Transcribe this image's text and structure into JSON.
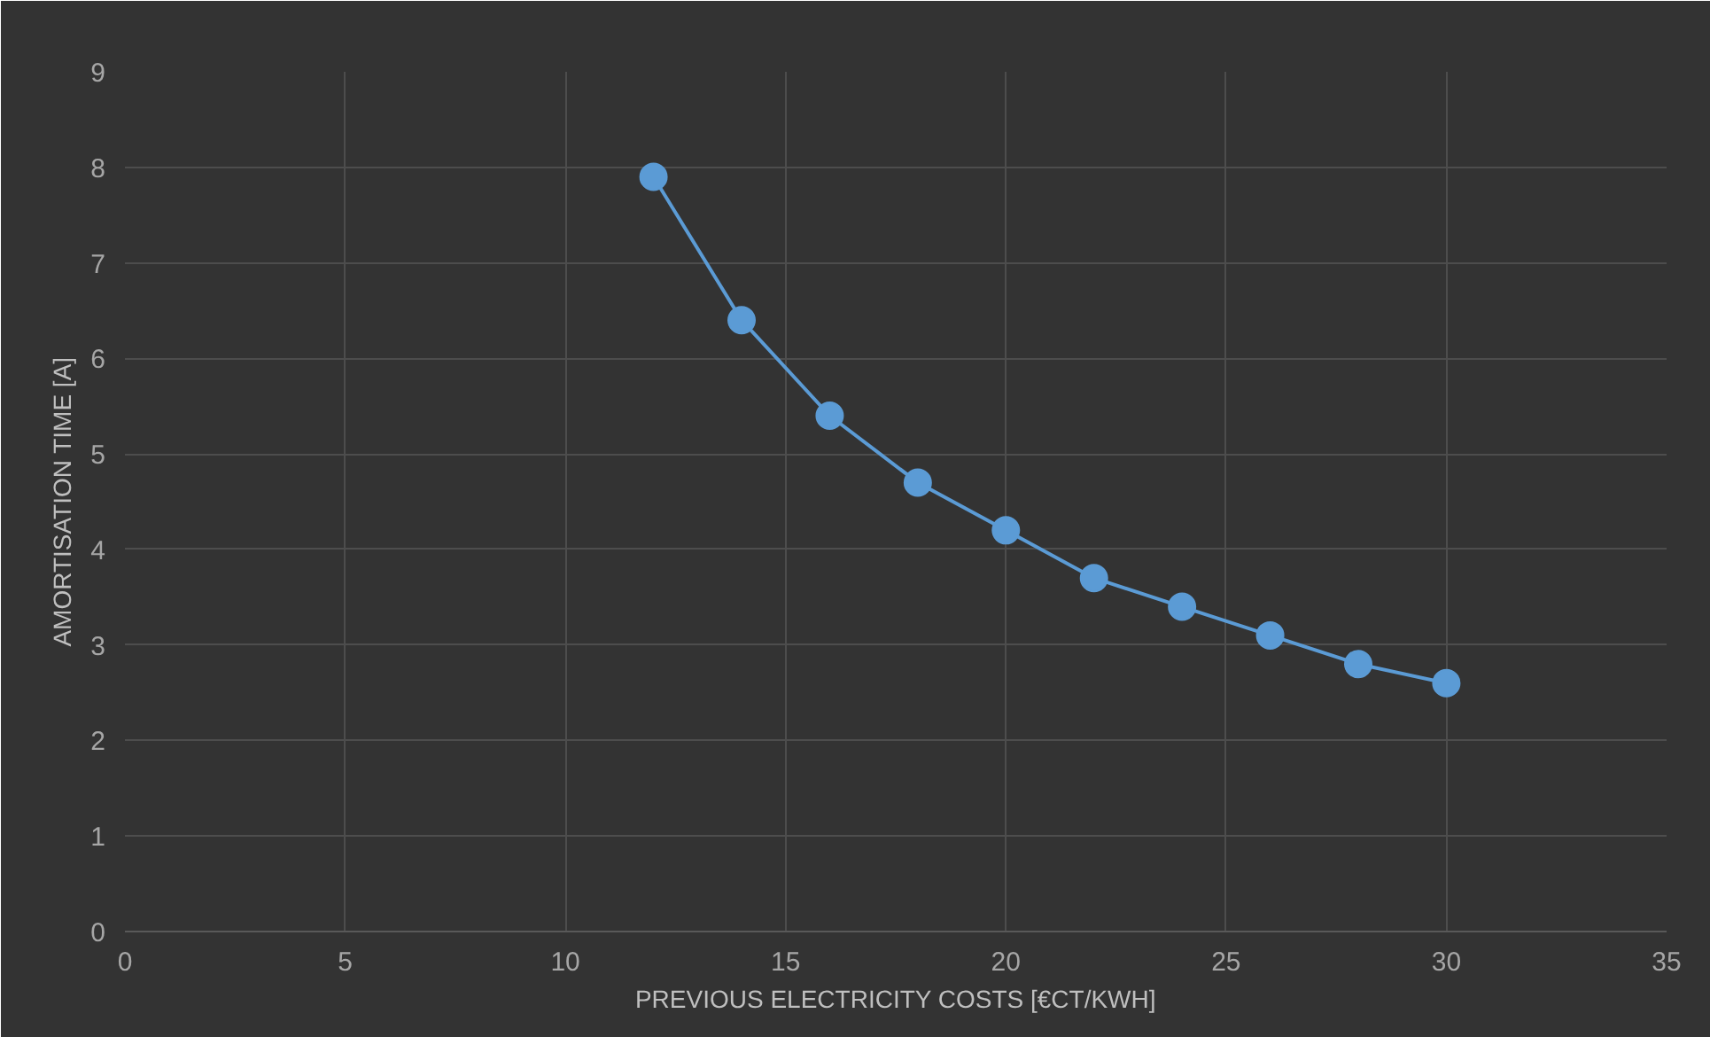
{
  "chart_data": {
    "type": "line",
    "xlabel": "PREVIOUS ELECTRICITY COSTS [€CT/KWH]",
    "ylabel": "AMORTISATION TIME [A]",
    "x": [
      12,
      14,
      16,
      18,
      20,
      22,
      24,
      26,
      28,
      30
    ],
    "series": [
      {
        "color": "#5b9bd5",
        "values": [
          7.9,
          6.4,
          5.4,
          4.7,
          4.2,
          3.7,
          3.4,
          3.1,
          2.8,
          2.6
        ]
      }
    ],
    "xlim": [
      0,
      35
    ],
    "xticks": [
      0,
      5,
      10,
      15,
      20,
      25,
      30,
      35
    ],
    "ylim": [
      0,
      9
    ],
    "yticks": [
      0,
      1,
      2,
      3,
      4,
      5,
      6,
      7,
      8,
      9
    ],
    "grid": true,
    "marker": "circle",
    "line_style": "solid"
  }
}
